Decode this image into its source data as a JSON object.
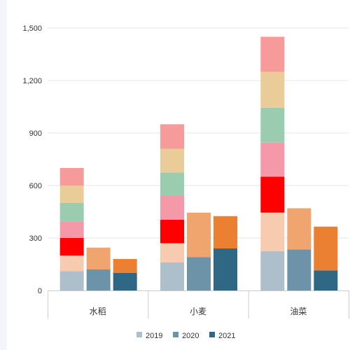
{
  "chart_data": {
    "type": "bar",
    "stacked": true,
    "categories": [
      "水稻",
      "小麦",
      "油菜"
    ],
    "ylim": [
      0,
      1500
    ],
    "yticks": [
      0,
      300,
      600,
      900,
      1200,
      1500
    ],
    "ytick_labels": [
      "0",
      "300",
      "600",
      "900",
      "1,200",
      "1,500"
    ],
    "grid": true,
    "legend_position": "bottom",
    "series": [
      {
        "name": "2019",
        "color": "#aebfcc",
        "segments": [
          {
            "color": "#aebfcc",
            "values": [
              110,
              160,
              225
            ]
          },
          {
            "color": "#f7cbb0",
            "values": [
              90,
              110,
              220
            ]
          },
          {
            "color": "#ff0000",
            "values": [
              100,
              135,
              205
            ]
          },
          {
            "color": "#f598a8",
            "values": [
              95,
              135,
              195
            ]
          },
          {
            "color": "#9acdb0",
            "values": [
              105,
              135,
              200
            ]
          },
          {
            "color": "#e9cc98",
            "values": [
              100,
              135,
              205
            ]
          },
          {
            "color": "#f79a9a",
            "values": [
              100,
              140,
              200
            ]
          }
        ]
      },
      {
        "name": "2020",
        "color": "#6d93a9",
        "segments": [
          {
            "color": "#6d93a9",
            "values": [
              120,
              190,
              235
            ]
          },
          {
            "color": "#f0a56f",
            "values": [
              125,
              255,
              235
            ]
          }
        ]
      },
      {
        "name": "2021",
        "color": "#2e6885",
        "segments": [
          {
            "color": "#2e6885",
            "values": [
              100,
              240,
              115
            ]
          },
          {
            "color": "#eb7f32",
            "values": [
              80,
              185,
              250
            ]
          }
        ]
      }
    ]
  }
}
